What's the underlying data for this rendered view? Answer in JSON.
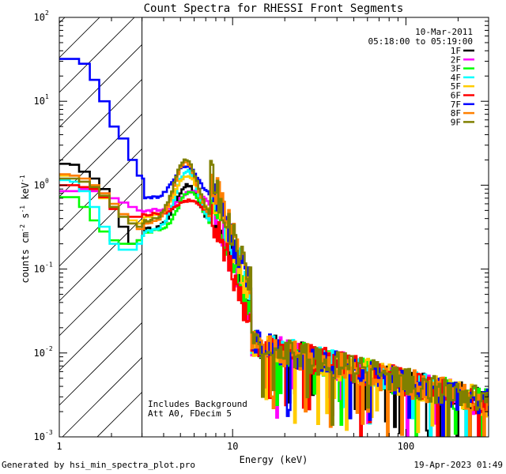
{
  "chart_data": {
    "type": "line",
    "title": "Count Spectra for RHESSI Front Segments",
    "xlabel": "Energy (keV)",
    "ylabel_parts": [
      "counts cm",
      "-2",
      " s",
      "-1",
      " keV",
      "-1"
    ],
    "xscale": "log",
    "yscale": "log",
    "xlim": [
      1,
      300
    ],
    "ylim": [
      0.001,
      100
    ],
    "x_ticks": [
      {
        "value": 1,
        "label": "1"
      },
      {
        "value": 10,
        "label": "10"
      },
      {
        "value": 100,
        "label": "100"
      }
    ],
    "y_ticks": [
      {
        "value": 0.001,
        "base": "10",
        "exp": "-3"
      },
      {
        "value": 0.01,
        "base": "10",
        "exp": "-2"
      },
      {
        "value": 0.1,
        "base": "10",
        "exp": "-1"
      },
      {
        "value": 1,
        "base": "10",
        "exp": "0"
      },
      {
        "value": 10,
        "base": "10",
        "exp": "1"
      },
      {
        "value": 100,
        "base": "10",
        "exp": "2"
      }
    ],
    "excluded_region": [
      1,
      3
    ],
    "date": "10-Mar-2011",
    "time_range": "05:18:00 to 05:19:00",
    "annotations": [
      "Includes Background",
      "Att A0, FDecim 5"
    ],
    "series": [
      {
        "name": "1F",
        "color": "#000000",
        "low": [
          1.8,
          1.75,
          1.45,
          1.2,
          0.9,
          0.55,
          0.32,
          0.2,
          0.22,
          0.25
        ],
        "peak_e": 5.4,
        "peak_v": 1.0,
        "base_v": 0.3
      },
      {
        "name": "2F",
        "color": "#ff00ff",
        "low": [
          0.85,
          0.85,
          0.9,
          0.85,
          0.8,
          0.7,
          0.62,
          0.55,
          0.5,
          0.48
        ],
        "peak_e": 5.8,
        "peak_v": 0.85,
        "base_v": 0.5
      },
      {
        "name": "3F",
        "color": "#00ff00",
        "low": [
          0.72,
          0.72,
          0.55,
          0.38,
          0.28,
          0.22,
          0.2,
          0.2,
          0.22,
          0.25
        ],
        "peak_e": 5.6,
        "peak_v": 0.85,
        "base_v": 0.28
      },
      {
        "name": "4F",
        "color": "#00ffff",
        "low": [
          1.15,
          1.1,
          0.85,
          0.55,
          0.32,
          0.2,
          0.17,
          0.17,
          0.2,
          0.25
        ],
        "peak_e": 5.4,
        "peak_v": 1.5,
        "base_v": 0.28
      },
      {
        "name": "5F",
        "color": "#ffcc00",
        "low": [
          1.3,
          1.3,
          1.1,
          0.9,
          0.7,
          0.55,
          0.45,
          0.38,
          0.35,
          0.38
        ],
        "peak_e": 5.4,
        "peak_v": 1.3,
        "base_v": 0.42
      },
      {
        "name": "6F",
        "color": "#ff0000",
        "low": [
          1.0,
          1.0,
          0.95,
          0.9,
          0.72,
          0.52,
          0.45,
          0.42,
          0.42,
          0.45
        ],
        "peak_e": 5.5,
        "peak_v": 0.65,
        "base_v": 0.45
      },
      {
        "name": "7F",
        "color": "#0000ff",
        "low": [
          32,
          32,
          28,
          18,
          10,
          5,
          3.6,
          2,
          1.3,
          1.2
        ],
        "peak_e": 5.3,
        "peak_v": 1.7,
        "base_v": 0.7
      },
      {
        "name": "8F",
        "color": "#ff7f00",
        "low": [
          1.35,
          1.3,
          1.2,
          1.0,
          0.8,
          0.6,
          0.45,
          0.35,
          0.3,
          0.3
        ],
        "peak_e": 5.3,
        "peak_v": 1.9,
        "base_v": 0.35
      },
      {
        "name": "9F",
        "color": "#808000",
        "low": [
          1.2,
          1.2,
          1.1,
          0.95,
          0.75,
          0.55,
          0.42,
          0.35,
          0.32,
          0.35
        ],
        "peak_e": 5.3,
        "peak_v": 2.0,
        "base_v": 0.38
      }
    ]
  },
  "footer": {
    "left": "Generated by hsi_min_spectra_plot.pro",
    "right": "19-Apr-2023 01:49"
  }
}
